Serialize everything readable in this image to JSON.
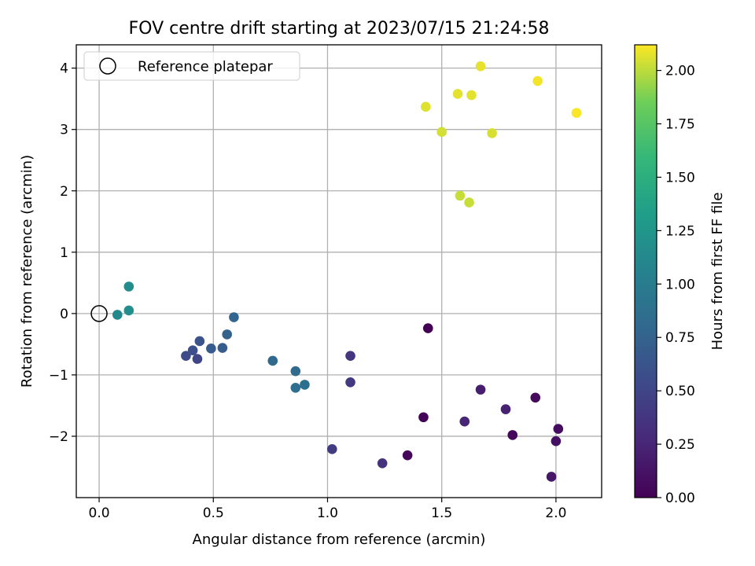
{
  "chart_data": {
    "type": "scatter",
    "title": "FOV centre drift starting at 2023/07/15 21:24:58",
    "xlabel": "Angular distance from reference (arcmin)",
    "ylabel": "Rotation from reference (arcmin)",
    "xlim": [
      -0.1,
      2.2
    ],
    "ylim": [
      -3.0,
      4.38
    ],
    "xticks": [
      0.0,
      0.5,
      1.0,
      1.5,
      2.0
    ],
    "xtick_labels": [
      "0.0",
      "0.5",
      "1.0",
      "1.5",
      "2.0"
    ],
    "yticks": [
      -2,
      -1,
      0,
      1,
      2,
      3,
      4
    ],
    "ytick_labels": [
      "−2",
      "−1",
      "0",
      "1",
      "2",
      "3",
      "4"
    ],
    "grid": true,
    "legend": {
      "placement": "upper-left",
      "entries": [
        "Reference platepar"
      ]
    },
    "reference_point": {
      "x": 0.0,
      "y": 0.0,
      "label": "Reference platepar"
    },
    "colorbar": {
      "label": "Hours from first FF file",
      "colormap": "viridis",
      "range": [
        0.0,
        2.12
      ],
      "ticks": [
        0.0,
        0.25,
        0.5,
        0.75,
        1.0,
        1.25,
        1.5,
        1.75,
        2.0
      ],
      "tick_labels": [
        "0.00",
        "0.25",
        "0.50",
        "0.75",
        "1.00",
        "1.25",
        "1.50",
        "1.75",
        "2.00"
      ]
    },
    "points": [
      {
        "x": 1.44,
        "y": -0.24,
        "c": 0.0
      },
      {
        "x": 1.42,
        "y": -1.69,
        "c": 0.02
      },
      {
        "x": 1.35,
        "y": -2.31,
        "c": 0.04
      },
      {
        "x": 1.81,
        "y": -1.98,
        "c": 0.05
      },
      {
        "x": 1.91,
        "y": -1.37,
        "c": 0.06
      },
      {
        "x": 2.01,
        "y": -1.88,
        "c": 0.08
      },
      {
        "x": 2.0,
        "y": -2.08,
        "c": 0.1
      },
      {
        "x": 1.98,
        "y": -2.66,
        "c": 0.15
      },
      {
        "x": 1.67,
        "y": -1.24,
        "c": 0.2
      },
      {
        "x": 1.78,
        "y": -1.56,
        "c": 0.22
      },
      {
        "x": 1.6,
        "y": -1.76,
        "c": 0.25
      },
      {
        "x": 1.24,
        "y": -2.44,
        "c": 0.35
      },
      {
        "x": 1.1,
        "y": -0.69,
        "c": 0.38
      },
      {
        "x": 1.1,
        "y": -1.12,
        "c": 0.4
      },
      {
        "x": 1.02,
        "y": -2.21,
        "c": 0.42
      },
      {
        "x": 0.43,
        "y": -0.74,
        "c": 0.5
      },
      {
        "x": 0.38,
        "y": -0.69,
        "c": 0.55
      },
      {
        "x": 0.41,
        "y": -0.6,
        "c": 0.58
      },
      {
        "x": 0.44,
        "y": -0.45,
        "c": 0.62
      },
      {
        "x": 0.49,
        "y": -0.57,
        "c": 0.68
      },
      {
        "x": 0.54,
        "y": -0.56,
        "c": 0.7
      },
      {
        "x": 0.56,
        "y": -0.34,
        "c": 0.74
      },
      {
        "x": 0.59,
        "y": -0.06,
        "c": 0.78
      },
      {
        "x": 0.76,
        "y": -0.77,
        "c": 0.8
      },
      {
        "x": 0.86,
        "y": -0.94,
        "c": 0.83
      },
      {
        "x": 0.86,
        "y": -1.21,
        "c": 0.86
      },
      {
        "x": 0.9,
        "y": -1.16,
        "c": 0.88
      },
      {
        "x": 0.08,
        "y": -0.02,
        "c": 1.12
      },
      {
        "x": 0.13,
        "y": 0.05,
        "c": 1.18
      },
      {
        "x": 0.13,
        "y": 0.44,
        "c": 1.16
      },
      {
        "x": 1.58,
        "y": 1.92,
        "c": 2.02
      },
      {
        "x": 1.62,
        "y": 1.81,
        "c": 2.02
      },
      {
        "x": 1.5,
        "y": 2.96,
        "c": 2.04
      },
      {
        "x": 1.72,
        "y": 2.94,
        "c": 2.05
      },
      {
        "x": 1.43,
        "y": 3.37,
        "c": 2.06
      },
      {
        "x": 1.57,
        "y": 3.58,
        "c": 2.07
      },
      {
        "x": 1.63,
        "y": 3.56,
        "c": 2.07
      },
      {
        "x": 1.67,
        "y": 4.03,
        "c": 2.08
      },
      {
        "x": 1.92,
        "y": 3.79,
        "c": 2.1
      },
      {
        "x": 2.09,
        "y": 3.27,
        "c": 2.11
      }
    ]
  }
}
